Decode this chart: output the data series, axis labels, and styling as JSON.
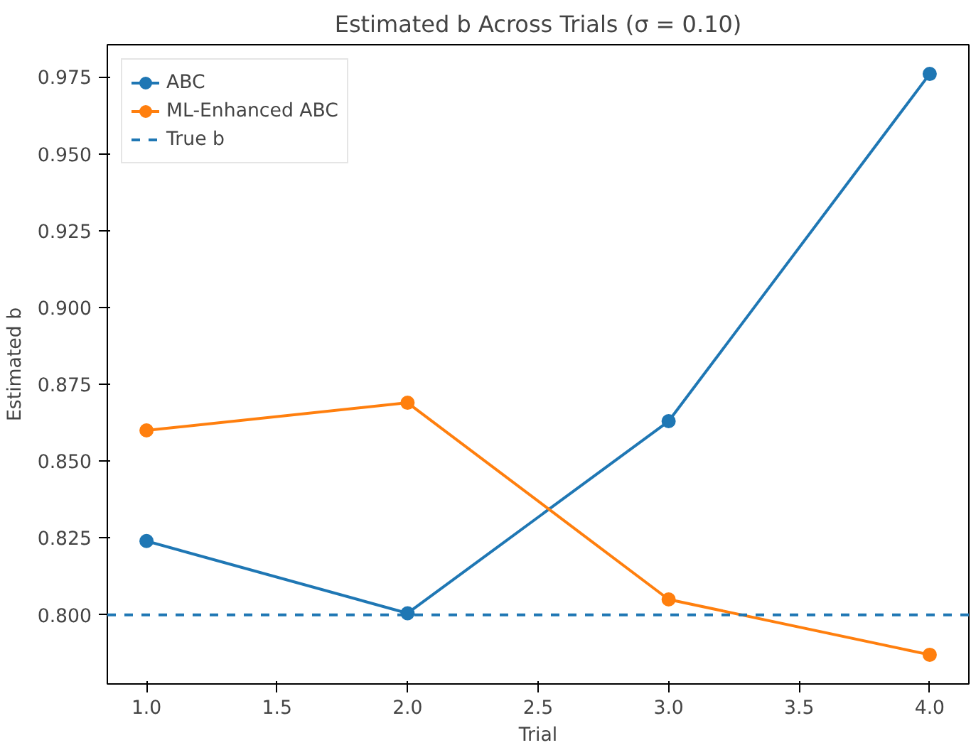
{
  "chart_data": {
    "type": "line",
    "title": "Estimated b Across Trials (σ = 0.10)",
    "xlabel": "Trial",
    "ylabel": "Estimated b",
    "x": [
      1,
      2,
      3,
      4
    ],
    "series": [
      {
        "name": "ABC",
        "color": "#1f77b4",
        "values": [
          0.824,
          0.8005,
          0.863,
          0.976
        ]
      },
      {
        "name": "ML-Enhanced ABC",
        "color": "#ff7f0e",
        "values": [
          0.86,
          0.869,
          0.805,
          0.787
        ]
      }
    ],
    "ref_lines": [
      {
        "axis": "y",
        "value": 0.8,
        "label": "True b",
        "color": "#1f77b4",
        "line_style": "dashed"
      }
    ],
    "xlim": [
      0.85,
      4.15
    ],
    "ylim": [
      0.7775,
      0.9855
    ],
    "xticks": [
      {
        "value": 1,
        "label": "1.0"
      },
      {
        "value": 1.5,
        "label": "1.5"
      },
      {
        "value": 2,
        "label": "2.0"
      },
      {
        "value": 2.5,
        "label": "2.5"
      },
      {
        "value": 3,
        "label": "3.0"
      },
      {
        "value": 3.5,
        "label": "3.5"
      },
      {
        "value": 4,
        "label": "4.0"
      }
    ],
    "yticks": [
      {
        "value": 0.8,
        "label": "0.800"
      },
      {
        "value": 0.825,
        "label": "0.825"
      },
      {
        "value": 0.85,
        "label": "0.850"
      },
      {
        "value": 0.875,
        "label": "0.875"
      },
      {
        "value": 0.9,
        "label": "0.900"
      },
      {
        "value": 0.925,
        "label": "0.925"
      },
      {
        "value": 0.95,
        "label": "0.950"
      },
      {
        "value": 0.975,
        "label": "0.975"
      }
    ],
    "marker": "circle",
    "line_style": "solid",
    "legend": "top left",
    "grid": false
  }
}
